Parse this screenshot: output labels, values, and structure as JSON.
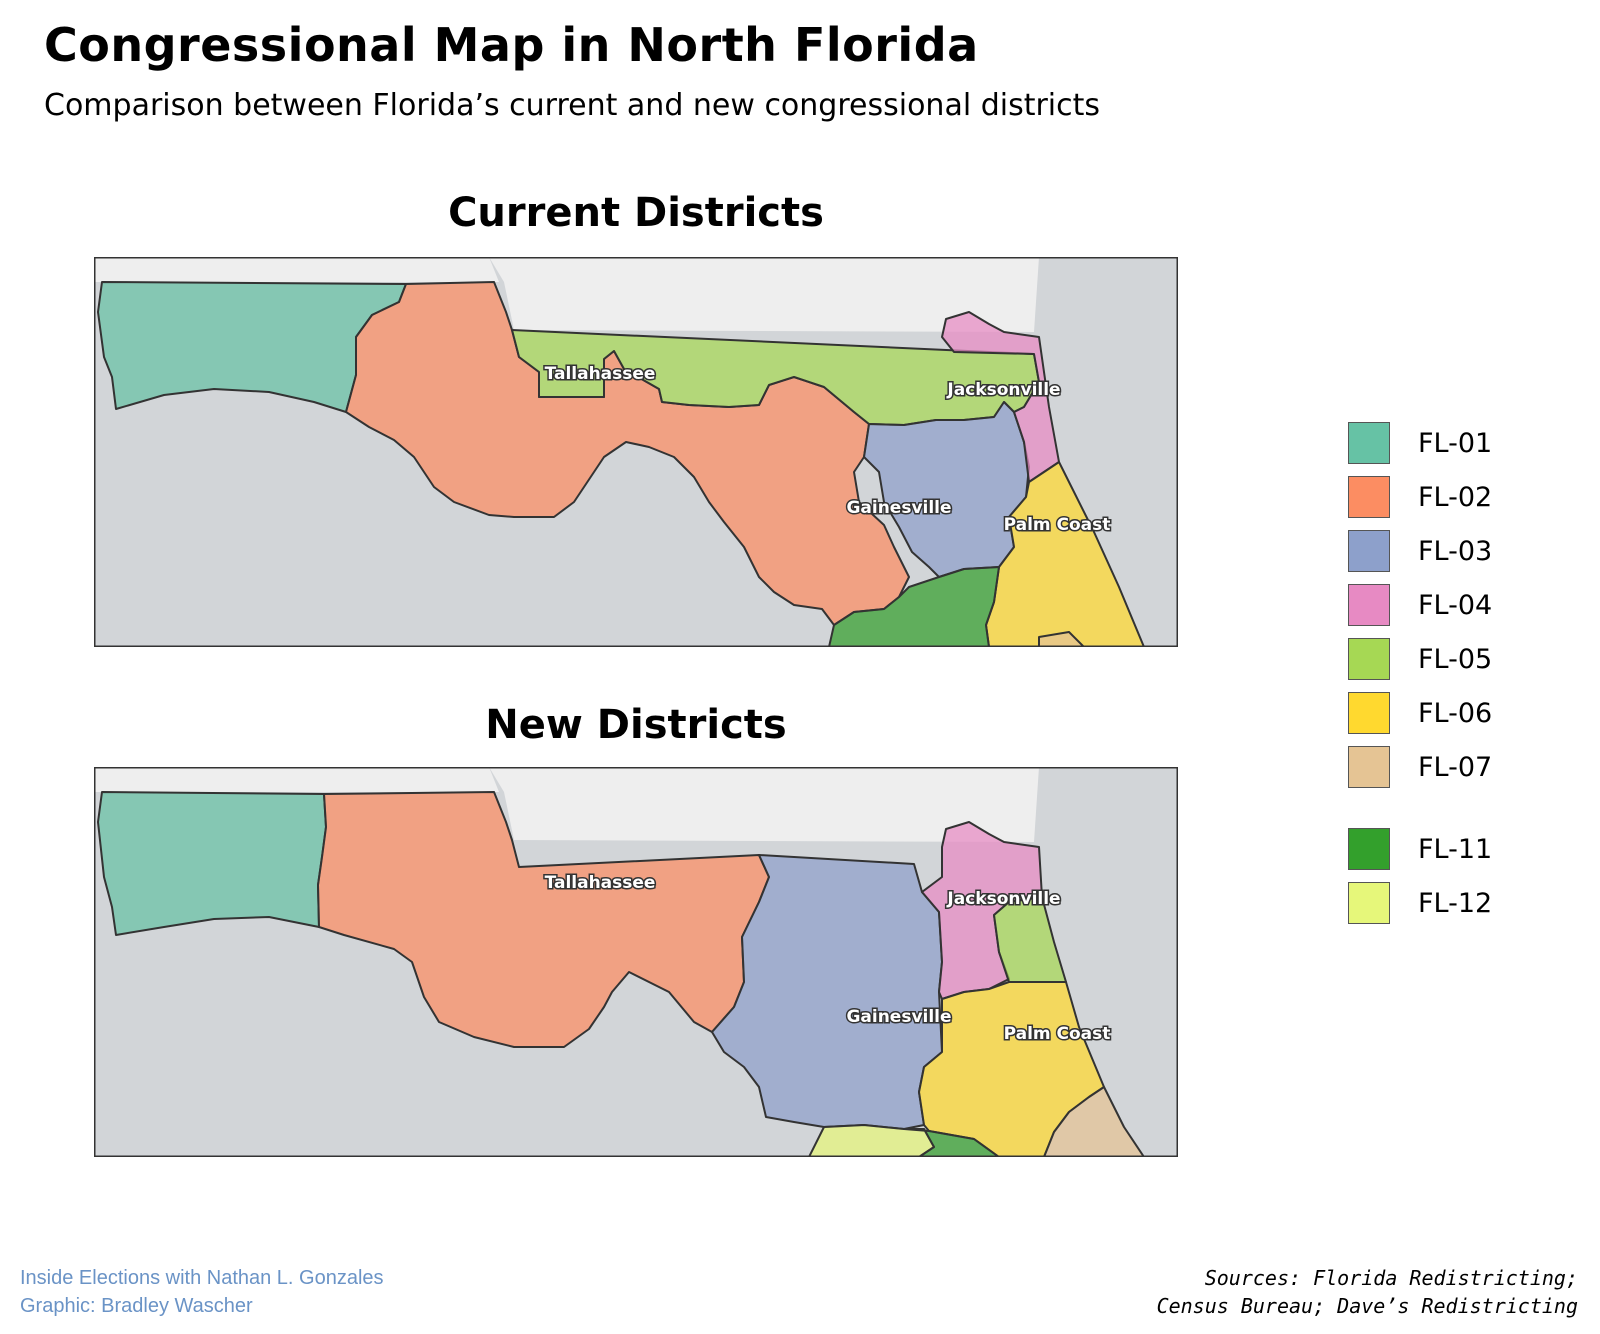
{
  "header": {
    "title": "Congressional Map in North Florida",
    "subtitle": "Comparison between Florida’s current and new congressional districts"
  },
  "maps": {
    "current": {
      "heading": "Current Districts",
      "cities": {
        "tallahassee": "Tallahassee",
        "jacksonville": "Jacksonville",
        "gainesville": "Gainesville",
        "palm_coast": "Palm Coast"
      }
    },
    "new": {
      "heading": "New Districts",
      "cities": {
        "tallahassee": "Tallahassee",
        "jacksonville": "Jacksonville",
        "gainesville": "Gainesville",
        "palm_coast": "Palm Coast"
      }
    }
  },
  "colors": {
    "water": "#d2d5d8",
    "land_outside": "#eeeeee",
    "FL-01": "#66c2a5",
    "FL-02": "#fc8d62",
    "FL-03": "#8da0cb",
    "FL-04": "#e78ac3",
    "FL-05": "#a6d854",
    "FL-06": "#ffd92f",
    "FL-07": "#e5c494",
    "FL-11": "#33a02c",
    "FL-12": "#e6f77a"
  },
  "legend": {
    "items": [
      {
        "label": "FL-01",
        "color": "#66c2a5"
      },
      {
        "label": "FL-02",
        "color": "#fc8d62"
      },
      {
        "label": "FL-03",
        "color": "#8da0cb"
      },
      {
        "label": "FL-04",
        "color": "#e78ac3"
      },
      {
        "label": "FL-05",
        "color": "#a6d854"
      },
      {
        "label": "FL-06",
        "color": "#ffd92f"
      },
      {
        "label": "FL-07",
        "color": "#e5c494"
      },
      {
        "label": "FL-11",
        "color": "#33a02c"
      },
      {
        "label": "FL-12",
        "color": "#e6f77a"
      }
    ]
  },
  "footer": {
    "credit_line1": "Inside Elections with Nathan L. Gonzales",
    "credit_line2": "Graphic: Bradley Wascher",
    "sources_line1": "Sources: Florida Redistricting;",
    "sources_line2": "Census Bureau; Dave’s Redistricting"
  }
}
